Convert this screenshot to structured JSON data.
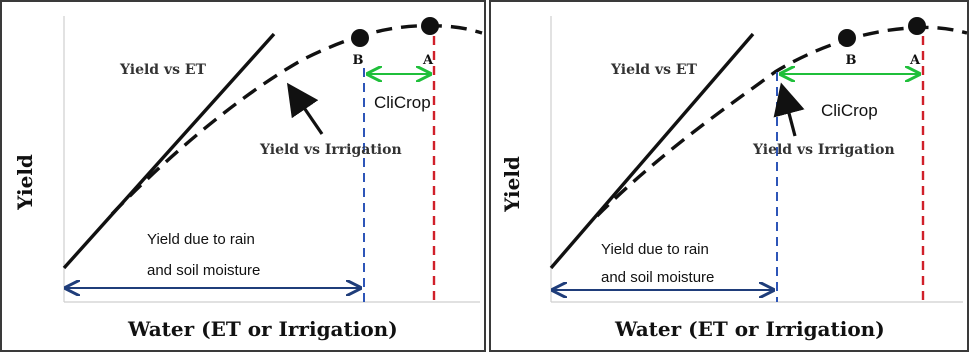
{
  "panels": [
    {
      "id": "left",
      "y_axis_label": "Yield",
      "x_axis_label": "Water (ET or Irrigation)",
      "label_yield_vs_et": "Yield vs ET",
      "label_yield_vs_irrigation": "Yield vs Irrigation",
      "label_clicrop": "CliCrop",
      "label_rain_line1": "Yield due to rain",
      "label_rain_line2": "and soil moisture",
      "point_b": "B",
      "point_a": "A"
    },
    {
      "id": "right",
      "y_axis_label": "Yield",
      "x_axis_label": "Water (ET or Irrigation)",
      "label_yield_vs_et": "Yield vs ET",
      "label_yield_vs_irrigation": "Yield vs Irrigation",
      "label_clicrop": "CliCrop",
      "label_rain_line1": "Yield due to rain",
      "label_rain_line2": "and soil moisture",
      "point_b": "B",
      "point_a": "A"
    }
  ],
  "colors": {
    "curve": "#111111",
    "axis": "#cfcfcf",
    "rain_arrow": "#1f3d7a",
    "b_line": "#2d55b8",
    "a_line": "#d0202a",
    "clicrop_arrow": "#1fbf3a",
    "border": "#3a3a3a"
  }
}
